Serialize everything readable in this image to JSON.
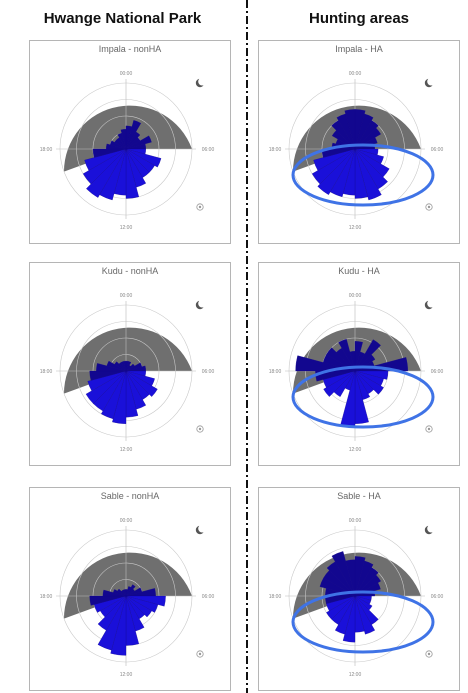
{
  "header": {
    "left_title": "Hwange National Park",
    "right_title": "Hunting areas"
  },
  "colors": {
    "bars": "#1a10d9",
    "bars_dark": "#12078f",
    "night_shade": "#6f6f6f",
    "highlight_ellipse": "#3f73e6",
    "divider": "#111111"
  },
  "chart_data": [
    {
      "type": "polar-bar",
      "title": "Impala - nonHA",
      "tick_labels": [
        "00:00",
        "06:00",
        "12:00",
        "18:00"
      ],
      "values": [
        0.35,
        0.45,
        0.3,
        0.25,
        0.4,
        0.3,
        0.3,
        0.55,
        0.5,
        0.5,
        0.6,
        0.75,
        0.7,
        0.8,
        0.85,
        0.75,
        0.65,
        0.5,
        0.3,
        0.25,
        0.2,
        0.2,
        0.25,
        0.3
      ],
      "highlighted": false
    },
    {
      "type": "polar-bar",
      "title": "Impala - HA",
      "tick_labels": [
        "00:00",
        "06:00",
        "12:00",
        "18:00"
      ],
      "values": [
        0.6,
        0.55,
        0.5,
        0.45,
        0.35,
        0.3,
        0.35,
        0.45,
        0.6,
        0.7,
        0.8,
        0.75,
        0.7,
        0.75,
        0.8,
        0.75,
        0.65,
        0.5,
        0.35,
        0.3,
        0.4,
        0.5,
        0.55,
        0.6
      ],
      "highlighted": true
    },
    {
      "type": "polar-bar",
      "title": "Kudu - nonHA",
      "tick_labels": [
        "00:00",
        "06:00",
        "12:00",
        "18:00"
      ],
      "values": [
        0.15,
        0.15,
        0.1,
        0.15,
        0.25,
        0.3,
        0.3,
        0.45,
        0.55,
        0.5,
        0.6,
        0.7,
        0.8,
        0.75,
        0.7,
        0.7,
        0.6,
        0.55,
        0.45,
        0.3,
        0.2,
        0.15,
        0.15,
        0.15
      ],
      "highlighted": false
    },
    {
      "type": "polar-bar",
      "title": "Kudu - HA",
      "tick_labels": [
        "00:00",
        "06:00",
        "12:00",
        "18:00"
      ],
      "values": [
        0.45,
        0.3,
        0.55,
        0.35,
        0.3,
        0.8,
        0.5,
        0.45,
        0.5,
        0.4,
        0.45,
        0.8,
        0.85,
        0.3,
        0.45,
        0.55,
        0.5,
        0.6,
        0.9,
        0.5,
        0.5,
        0.4,
        0.5,
        0.3
      ],
      "highlighted": true
    },
    {
      "type": "polar-bar",
      "title": "Sable - nonHA",
      "tick_labels": [
        "00:00",
        "06:00",
        "12:00",
        "18:00"
      ],
      "values": [
        0.1,
        0.15,
        0.2,
        0.15,
        0.25,
        0.45,
        0.6,
        0.5,
        0.45,
        0.4,
        0.55,
        0.75,
        0.9,
        0.85,
        0.6,
        0.45,
        0.5,
        0.55,
        0.35,
        0.2,
        0.15,
        0.1,
        0.1,
        0.1
      ],
      "highlighted": false
    },
    {
      "type": "polar-bar",
      "title": "Sable - HA",
      "tick_labels": [
        "00:00",
        "06:00",
        "12:00",
        "18:00"
      ],
      "values": [
        0.6,
        0.55,
        0.5,
        0.45,
        0.4,
        0.3,
        0.25,
        0.25,
        0.3,
        0.5,
        0.6,
        0.55,
        0.7,
        0.6,
        0.5,
        0.5,
        0.45,
        0.45,
        0.45,
        0.55,
        0.55,
        0.6,
        0.7,
        0.55
      ],
      "highlighted": true
    }
  ]
}
